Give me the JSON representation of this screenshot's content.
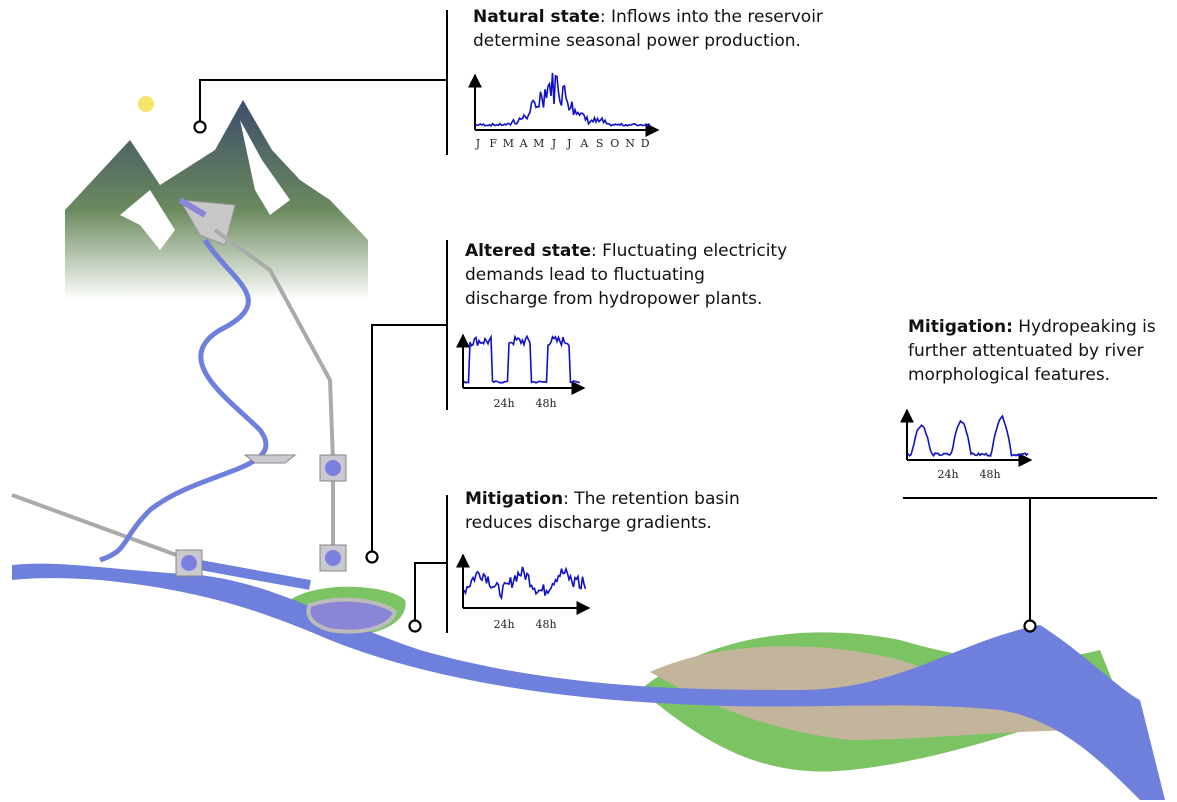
{
  "panels": [
    {
      "title": "Natural state",
      "lines": [
        ": Inflows into the reservoir",
        "determine seasonal power production."
      ],
      "axis_labels": [
        "J",
        "F",
        "M",
        "A",
        "M",
        "J",
        "J",
        "A",
        "S",
        "O",
        "N",
        "D"
      ]
    },
    {
      "title": "Altered state",
      "lines": [
        ": Fluctuating electricity",
        "demands lead to fluctuating",
        "discharge from hydropower plants."
      ],
      "axis_labels": [
        "24h",
        "48h"
      ]
    },
    {
      "title": "Mitigation",
      "lines": [
        ": The retention basin",
        "reduces discharge gradients."
      ],
      "axis_labels": [
        "24h",
        "48h"
      ]
    },
    {
      "title": "Mitigation:",
      "lines": [
        " Hydropeaking is",
        "further attentuated by river",
        "morphological features."
      ],
      "axis_labels": [
        "24h",
        "48h"
      ]
    }
  ]
}
